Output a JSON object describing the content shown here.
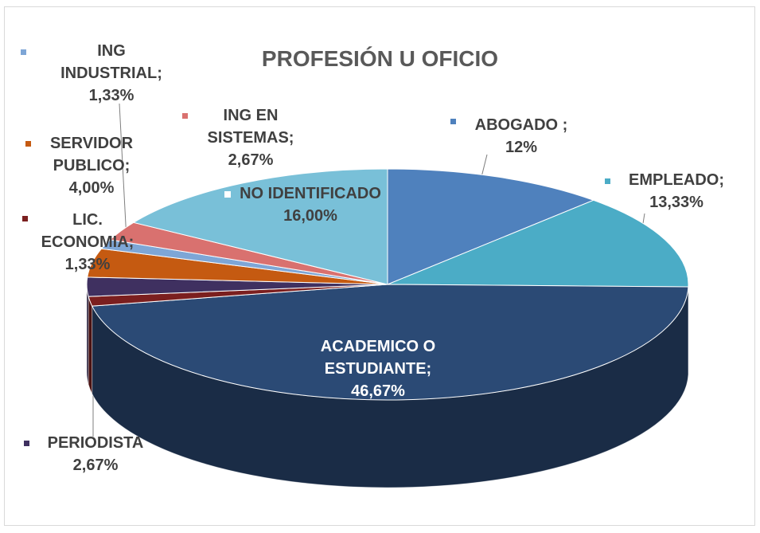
{
  "chart_data": {
    "type": "pie",
    "title": "PROFESIÓN U OFICIO",
    "categories": [
      "ABOGADO ;",
      "EMPLEADO;",
      "ACADEMICO O ESTUDIANTE;",
      "LIC. ECONOMIA;",
      "PERIODISTA",
      "SERVIDOR PUBLICO;",
      "ING INDUSTRIAL;",
      "ING EN SISTEMAS;",
      "NO IDENTIFICADO"
    ],
    "values": [
      12,
      13.33,
      46.67,
      1.33,
      2.67,
      4.0,
      1.33,
      2.67,
      16.0
    ],
    "value_labels": [
      "12%",
      "13,33%",
      "46,67%",
      "1,33%",
      "2,67%",
      "4,00%",
      "1,33%",
      "2,67%",
      "16,00%"
    ],
    "colors": [
      "#4f81bd",
      "#4bacc6",
      "#2b4a75",
      "#7b1f1f",
      "#3f3060",
      "#c55a11",
      "#7ea6d6",
      "#d9716f",
      "#79c0d8"
    ]
  }
}
